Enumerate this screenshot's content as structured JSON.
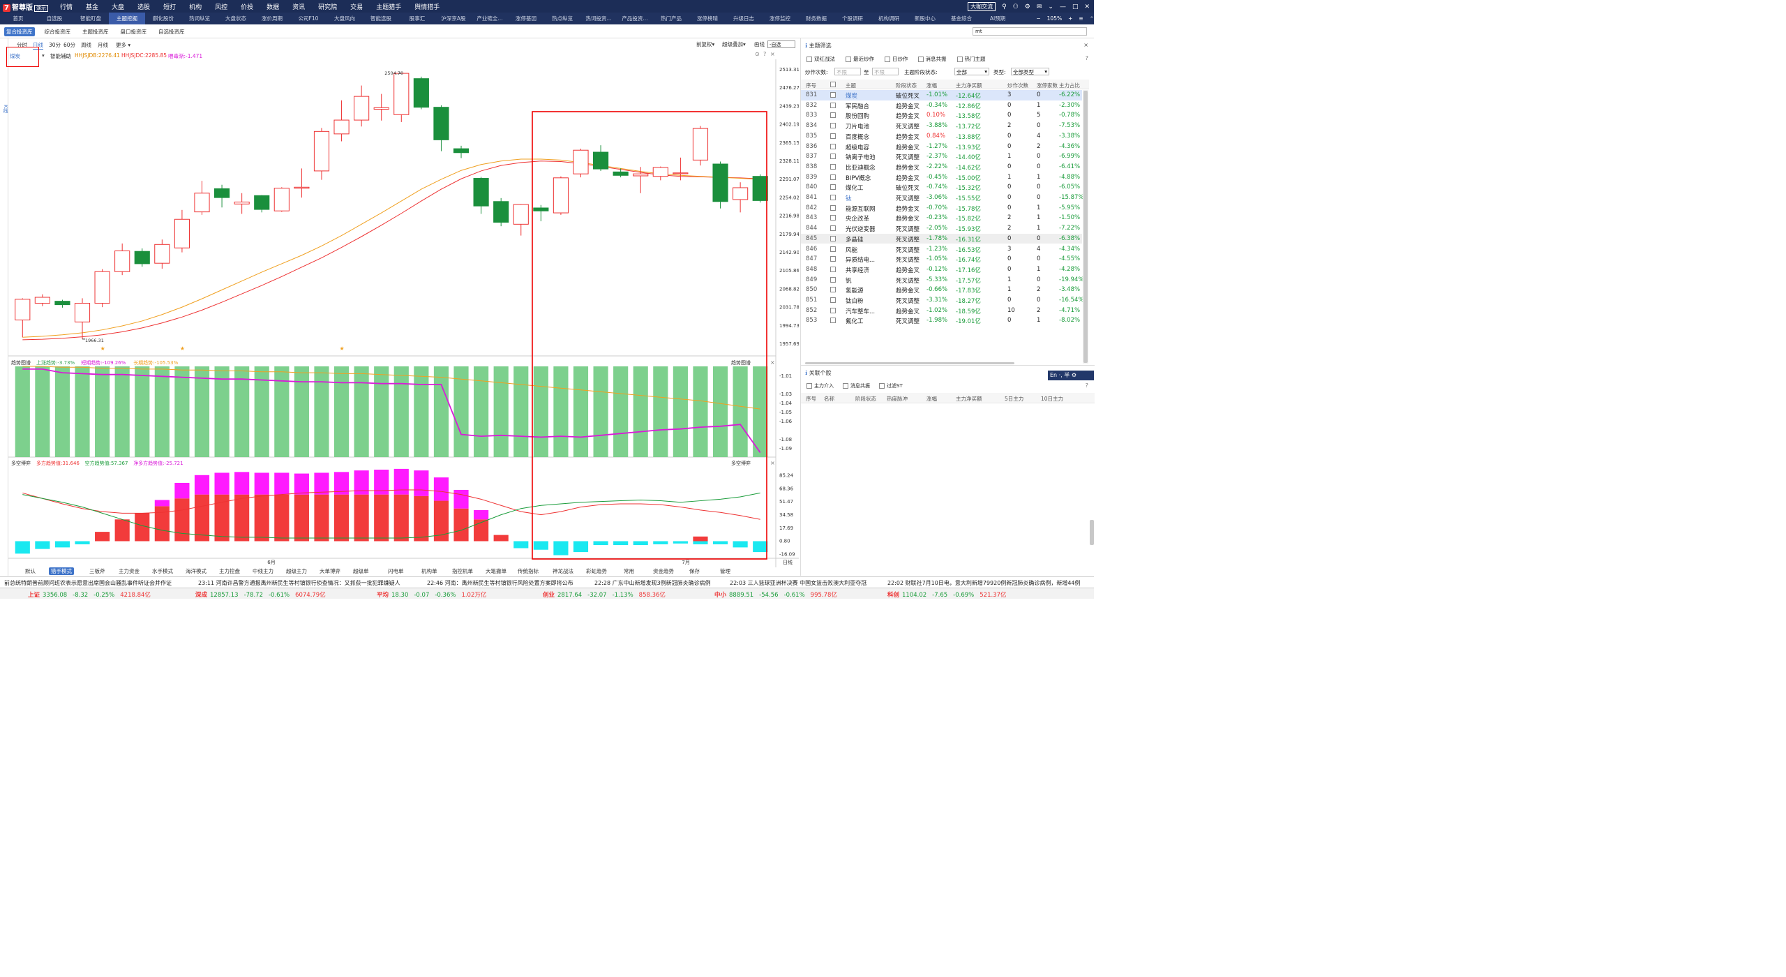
{
  "top": {
    "logo_badge": "7",
    "logo_text": "智尊版",
    "logo_demo": "演示",
    "menu": [
      "行情",
      "基金",
      "大盘",
      "选股",
      "短打",
      "机构",
      "风控",
      "价投",
      "数据",
      "资讯",
      "研究院",
      "交易",
      "主题猎手",
      "舆情猎手"
    ],
    "right": [
      "大咖交流",
      "⚲",
      "⚇",
      "⚙",
      "✉",
      "⌄",
      "—",
      "□",
      "✕"
    ]
  },
  "nav": {
    "tabs": [
      "首页",
      "自选股",
      "智能盯盘",
      "主题挖掘",
      "麒化股份",
      "热词纵览",
      "大盘状态",
      "涨价周期",
      "公司F10",
      "大盘风向",
      "智能选股",
      "股事汇",
      "沪深京A股",
      "产业链全...",
      "涨停基因",
      "热点纵览",
      "热词投资...",
      "产品投资...",
      "热门产品",
      "涨停榜晴",
      "升级日志",
      "涨停监控",
      "财务数据",
      "个股调研",
      "机构调研",
      "新股中心",
      "基金综合",
      "AI预期"
    ],
    "active_index": 3,
    "zoom": "105%",
    "controls": [
      "+",
      "≡",
      "⌃"
    ]
  },
  "subtabs": {
    "tabs": [
      "复合投资库",
      "综合投资库",
      "主题投资库",
      "盘口投资库",
      "自选投资库"
    ],
    "active_index": 0,
    "search_value": "mt"
  },
  "leftbar": {
    "label": "K线"
  },
  "chart_toolbar": {
    "periods": [
      "分时",
      "日线",
      "30分",
      "60分",
      "周线",
      "月线",
      "更多 ▾"
    ],
    "active_period": 1,
    "right_items": [
      "前复权▾",
      "超级叠加▾",
      "画线"
    ],
    "select_value": "-自选"
  },
  "chart_info": {
    "name": "煤炭",
    "assist": "智能辅助",
    "hhjsjdb": "HHJSJDB:2276.41",
    "hhjsjdc": "HHJSJDC:2285.85",
    "hint": "喂毒渐:-1.471"
  },
  "chart_data": [
    {
      "type": "candlestick",
      "title": "煤炭",
      "yticks": [
        2513.31,
        2476.27,
        2439.23,
        2402.19,
        2365.15,
        2328.11,
        2291.07,
        2254.02,
        2216.98,
        2179.94,
        2142.9,
        2105.86,
        2068.82,
        2031.78,
        1994.73,
        1957.69
      ],
      "ylim": [
        1957.69,
        2513.31
      ],
      "candles": [
        {
          "o": 2005,
          "c": 2047,
          "h": 2049,
          "l": 1970
        },
        {
          "o": 2039,
          "c": 2051,
          "h": 2057,
          "l": 2033
        },
        {
          "o": 2043,
          "c": 2036,
          "h": 2046,
          "l": 2030
        },
        {
          "o": 2001,
          "c": 2039,
          "h": 2049,
          "l": 1966.31
        },
        {
          "o": 2039,
          "c": 2103,
          "h": 2108,
          "l": 2031
        },
        {
          "o": 2103,
          "c": 2145,
          "h": 2160,
          "l": 2096
        },
        {
          "o": 2144,
          "c": 2119,
          "h": 2150,
          "l": 2113
        },
        {
          "o": 2120,
          "c": 2158,
          "h": 2168,
          "l": 2109
        },
        {
          "o": 2151,
          "c": 2209,
          "h": 2228,
          "l": 2142
        },
        {
          "o": 2224,
          "c": 2262,
          "h": 2287,
          "l": 2218
        },
        {
          "o": 2271,
          "c": 2253,
          "h": 2279,
          "l": 2233
        },
        {
          "o": 2240,
          "c": 2244,
          "h": 2262,
          "l": 2220
        },
        {
          "o": 2257,
          "c": 2229,
          "h": 2258,
          "l": 2223
        },
        {
          "o": 2226,
          "c": 2272,
          "h": 2274,
          "l": 2224
        },
        {
          "o": 2272,
          "c": 2274,
          "h": 2312,
          "l": 2253
        },
        {
          "o": 2307,
          "c": 2387,
          "h": 2394,
          "l": 2289
        },
        {
          "o": 2382,
          "c": 2410,
          "h": 2450,
          "l": 2367
        },
        {
          "o": 2410,
          "c": 2458,
          "h": 2480,
          "l": 2397
        },
        {
          "o": 2432,
          "c": 2435,
          "h": 2463,
          "l": 2409
        },
        {
          "o": 2421,
          "c": 2504.7,
          "h": 2504.7,
          "l": 2406
        },
        {
          "o": 2494,
          "c": 2436,
          "h": 2498,
          "l": 2432
        },
        {
          "o": 2436,
          "c": 2370,
          "h": 2440,
          "l": 2347
        },
        {
          "o": 2352,
          "c": 2344,
          "h": 2358,
          "l": 2333
        },
        {
          "o": 2292,
          "c": 2236,
          "h": 2295,
          "l": 2220
        },
        {
          "o": 2245,
          "c": 2203,
          "h": 2252,
          "l": 2195
        },
        {
          "o": 2199,
          "c": 2239,
          "h": 2240,
          "l": 2176
        },
        {
          "o": 2232,
          "c": 2226,
          "h": 2238,
          "l": 2205
        },
        {
          "o": 2222,
          "c": 2293,
          "h": 2296,
          "l": 2218
        },
        {
          "o": 2301,
          "c": 2349,
          "h": 2352,
          "l": 2294
        },
        {
          "o": 2345,
          "c": 2311,
          "h": 2359,
          "l": 2307
        },
        {
          "o": 2305,
          "c": 2298,
          "h": 2312,
          "l": 2294
        },
        {
          "o": 2297,
          "c": 2301,
          "h": 2315,
          "l": 2262
        },
        {
          "o": 2296,
          "c": 2314,
          "h": 2316,
          "l": 2288
        },
        {
          "o": 2303,
          "c": 2303,
          "h": 2334,
          "l": 2288
        },
        {
          "o": 2329,
          "c": 2393,
          "h": 2398,
          "l": 2318
        },
        {
          "o": 2321,
          "c": 2245,
          "h": 2326,
          "l": 2231
        },
        {
          "o": 2249,
          "c": 2273,
          "h": 2284,
          "l": 2223
        },
        {
          "o": 2296,
          "c": 2247,
          "h": 2300,
          "l": 2243
        }
      ],
      "labels": {
        "high": "2504.70",
        "low": "1966.31"
      },
      "ma_orange": [
        1970,
        1972,
        1975,
        1979,
        1985,
        1993,
        2003,
        2016,
        2031,
        2048,
        2066,
        2084,
        2102,
        2119,
        2136,
        2155,
        2176,
        2199,
        2222,
        2246,
        2270,
        2290,
        2308,
        2320,
        2327,
        2331,
        2331,
        2329,
        2324,
        2318,
        2312,
        2306,
        2301,
        2298,
        2296,
        2294,
        2292,
        2290
      ],
      "ma_red": [
        1965,
        1966,
        1968,
        1971,
        1975,
        1981,
        1989,
        1999,
        2011,
        2025,
        2041,
        2058,
        2075,
        2093,
        2112,
        2131,
        2152,
        2174,
        2197,
        2221,
        2246,
        2270,
        2291,
        2307,
        2318,
        2324,
        2327,
        2326,
        2322,
        2316,
        2310,
        2304,
        2299,
        2296,
        2295,
        2294,
        2293,
        2291
      ]
    },
    {
      "type": "bar",
      "title": "趋势图谱",
      "legend": [
        {
          "name": "上涨趋势:-3.73%",
          "color": "#2e9e4f"
        },
        {
          "name": "短期趋势:-109.26%",
          "color": "#d91ad9"
        },
        {
          "name": "长期趋势:-105.53%",
          "color": "#f0a020"
        }
      ],
      "yticks": [
        -1.01,
        -1.03,
        -1.04,
        -1.05,
        -1.06,
        -1.08,
        -1.09
      ],
      "ylim": [
        -1.1,
        -1.0
      ],
      "bar_count": 38,
      "short": [
        -1.003,
        -1.003,
        -1.007,
        -1.008,
        -1.009,
        -1.009,
        -1.01,
        -1.011,
        -1.012,
        -1.013,
        -1.014,
        -1.014,
        -1.015,
        -1.016,
        -1.017,
        -1.017,
        -1.018,
        -1.018,
        -1.019,
        -1.019,
        -1.02,
        -1.02,
        -1.075,
        -1.077,
        -1.076,
        -1.077,
        -1.078,
        -1.077,
        -1.078,
        -1.076,
        -1.074,
        -1.072,
        -1.07,
        -1.069,
        -1.067,
        -1.066,
        -1.064,
        -1.095
      ],
      "long": [
        -1.0,
        -1.0,
        -1.001,
        -1.001,
        -1.002,
        -1.002,
        -1.003,
        -1.003,
        -1.004,
        -1.004,
        -1.005,
        -1.005,
        -1.006,
        -1.006,
        -1.007,
        -1.007,
        -1.008,
        -1.008,
        -1.009,
        -1.01,
        -1.011,
        -1.012,
        -1.014,
        -1.016,
        -1.018,
        -1.02,
        -1.022,
        -1.024,
        -1.026,
        -1.028,
        -1.03,
        -1.032,
        -1.034,
        -1.036,
        -1.038,
        -1.041,
        -1.044,
        -1.047
      ]
    },
    {
      "type": "bar",
      "title": "多空博弈",
      "legend": [
        {
          "name": "多方趋势值:31.646",
          "color": "#e33"
        },
        {
          "name": "空方趋势值:57.367",
          "color": "#1a9c3a"
        },
        {
          "name": "净多方趋势值:-25.721",
          "color": "#d91ad9"
        }
      ],
      "yticks": [
        85.24,
        68.36,
        51.47,
        34.58,
        17.69,
        0.8,
        -16.09
      ],
      "ylim": [
        -22,
        92
      ],
      "red": [
        0,
        0,
        0,
        0,
        12,
        28,
        36,
        45,
        55,
        60,
        60,
        60,
        60,
        60,
        60,
        60,
        60,
        60,
        60,
        60,
        58,
        52,
        42,
        28,
        8,
        0,
        0,
        0,
        0,
        0,
        0,
        0,
        0,
        0,
        6,
        0,
        0,
        0
      ],
      "magenta": [
        0,
        0,
        0,
        0,
        0,
        0,
        0,
        8,
        20,
        25,
        28,
        29,
        28,
        28,
        27,
        28,
        29,
        31,
        32,
        33,
        33,
        30,
        24,
        12,
        0,
        0,
        0,
        0,
        0,
        0,
        0,
        0,
        0,
        0,
        0,
        0,
        0,
        0
      ],
      "cyan": [
        -16,
        -10,
        -8,
        -4,
        0,
        0,
        0,
        0,
        0,
        0,
        0,
        0,
        0,
        0,
        0,
        0,
        0,
        0,
        0,
        0,
        0,
        0,
        0,
        0,
        0,
        -9,
        -11,
        -18,
        -14,
        -5,
        -5,
        -5,
        -4,
        -3,
        -4,
        -4,
        -8,
        -14
      ],
      "line_red": [
        62,
        55,
        48,
        42,
        38,
        36,
        36,
        37,
        40,
        45,
        50,
        55,
        58,
        60,
        62,
        63,
        64,
        65,
        65,
        66,
        66,
        64,
        60,
        54,
        46,
        38,
        34,
        38,
        44,
        47,
        48,
        48,
        47,
        44,
        40,
        37,
        33,
        28
      ],
      "line_green": [
        60,
        55,
        50,
        44,
        36,
        28,
        20,
        14,
        10,
        8,
        6,
        5,
        5,
        4,
        4,
        4,
        4,
        4,
        4,
        4,
        5,
        8,
        14,
        24,
        34,
        42,
        46,
        48,
        50,
        51,
        52,
        53,
        52,
        50,
        52,
        54,
        57,
        62
      ]
    }
  ],
  "xaxis": {
    "labels": [
      "6月",
      "7月"
    ]
  },
  "pane_labels": {
    "trend": "趋势图谱",
    "duokong": "多空博弈",
    "bottom_right": "日线"
  },
  "bottom_tabs": {
    "items": [
      "默认",
      "猎手模式",
      "三板斧",
      "主力资金",
      "水手模式",
      "海洋模式",
      "主力控盘",
      "中线主力",
      "超级主力",
      "大单博弈",
      "超级单",
      "闪电单",
      "机构单",
      "指控机单",
      "大笔撤单",
      "传统指标",
      "神龙战法",
      "彩虹趋势",
      "常用",
      "资金趋势",
      "保存",
      "管理"
    ],
    "active_index": 1
  },
  "right_panel": {
    "title": "主题筛选",
    "filters": [
      "双红战法",
      "最近炒作",
      "日炒作",
      "消息共振",
      "热门主题"
    ],
    "count_label": "炒作次数:",
    "placeholder": "不限",
    "to": "至",
    "stage_label": "主题阶段状态:",
    "stage_value": "全部",
    "type_label": "类型:",
    "type_value": "全部类型",
    "columns": [
      "序号",
      "",
      "主题",
      "阶段状态",
      "涨幅",
      "主力净买额",
      "炒作次数",
      "涨停家数",
      "主力占比"
    ],
    "rows": [
      [
        "831",
        "煤炭",
        "破位死叉",
        "-1.01%",
        "-12.64亿",
        "3",
        "0",
        "-6.22%"
      ],
      [
        "832",
        "军民融合",
        "趋势金叉",
        "-0.34%",
        "-12.86亿",
        "0",
        "1",
        "-2.30%"
      ],
      [
        "833",
        "股份回购",
        "趋势金叉",
        "0.10%",
        "-13.58亿",
        "0",
        "5",
        "-0.78%"
      ],
      [
        "834",
        "刀片电池",
        "死叉调整",
        "-3.88%",
        "-13.72亿",
        "2",
        "0",
        "-7.53%"
      ],
      [
        "835",
        "百度概念",
        "趋势金叉",
        "0.84%",
        "-13.88亿",
        "0",
        "4",
        "-3.38%"
      ],
      [
        "836",
        "超级电容",
        "趋势金叉",
        "-1.27%",
        "-13.93亿",
        "0",
        "2",
        "-4.36%"
      ],
      [
        "837",
        "钠离子电池",
        "死叉调整",
        "-2.37%",
        "-14.40亿",
        "1",
        "0",
        "-6.99%"
      ],
      [
        "838",
        "比亚迪概念",
        "趋势金叉",
        "-2.22%",
        "-14.62亿",
        "0",
        "0",
        "-6.41%"
      ],
      [
        "839",
        "BIPV概念",
        "趋势金叉",
        "-0.45%",
        "-15.00亿",
        "1",
        "1",
        "-4.88%"
      ],
      [
        "840",
        "煤化工",
        "破位死叉",
        "-0.74%",
        "-15.32亿",
        "0",
        "0",
        "-6.05%"
      ],
      [
        "841",
        "钛",
        "死叉调整",
        "-3.06%",
        "-15.55亿",
        "0",
        "0",
        "-15.87%"
      ],
      [
        "842",
        "能源互联网",
        "趋势金叉",
        "-0.70%",
        "-15.78亿",
        "0",
        "1",
        "-5.95%"
      ],
      [
        "843",
        "央企改革",
        "趋势金叉",
        "-0.23%",
        "-15.82亿",
        "2",
        "1",
        "-1.50%"
      ],
      [
        "844",
        "光伏逆变器",
        "死叉调整",
        "-2.05%",
        "-15.93亿",
        "2",
        "1",
        "-7.22%"
      ],
      [
        "845",
        "多晶硅",
        "死叉调整",
        "-1.78%",
        "-16.31亿",
        "0",
        "0",
        "-6.38%"
      ],
      [
        "846",
        "风能",
        "死叉调整",
        "-1.23%",
        "-16.53亿",
        "3",
        "4",
        "-4.34%"
      ],
      [
        "847",
        "异质结电...",
        "死叉调整",
        "-1.05%",
        "-16.74亿",
        "0",
        "0",
        "-4.55%"
      ],
      [
        "848",
        "共享经济",
        "趋势金叉",
        "-0.12%",
        "-17.16亿",
        "0",
        "1",
        "-4.28%"
      ],
      [
        "849",
        "钒",
        "死叉调整",
        "-5.33%",
        "-17.57亿",
        "1",
        "0",
        "-19.94%"
      ],
      [
        "850",
        "氢能源",
        "趋势金叉",
        "-0.66%",
        "-17.83亿",
        "1",
        "2",
        "-3.48%"
      ],
      [
        "851",
        "钛白粉",
        "死叉调整",
        "-3.31%",
        "-18.27亿",
        "0",
        "0",
        "-16.54%"
      ],
      [
        "852",
        "汽车整车...",
        "趋势金叉",
        "-1.02%",
        "-18.59亿",
        "10",
        "2",
        "-4.71%"
      ],
      [
        "853",
        "氟化工",
        "死叉调整",
        "-1.98%",
        "-19.01亿",
        "0",
        "1",
        "-8.02%"
      ]
    ],
    "selected_row": 0,
    "highlight_row": 14,
    "related_title": "关联个股",
    "related_filters": [
      "主力介入",
      "消息共振",
      "过滤ST"
    ],
    "related_columns": [
      "序号",
      "名称",
      "阶段状态",
      "热度脉冲",
      "涨幅",
      "主力净买额",
      "5日主力",
      "10日主力"
    ],
    "ime": "En ·, 半 ⚙"
  },
  "ticker": [
    "前总统特朗普前顾问班农表示愿意出席国会山骚乱事件听证会并作证",
    "23:11 河南许昌警方通报禹州新民生等村镇银行侦查情况：又抓获一批犯罪嫌疑人",
    "22:46 河南：禹州新民生等村镇银行风险处置方案即将公布",
    "22:28 广东中山新增发现3例新冠肺炎确诊病例",
    "22:03 三人篮球亚洲杯决赛 中国女篮击败澳大利亚夺冠",
    "22:02 财联社7月10日电，意大利新增79920例新冠肺炎确诊病例，新增44例"
  ],
  "indices": [
    {
      "name": "上证",
      "price": "3356.08",
      "chg": "-8.32",
      "pct": "-0.25%",
      "amt": "4218.84亿"
    },
    {
      "name": "深成",
      "price": "12857.13",
      "chg": "-78.72",
      "pct": "-0.61%",
      "amt": "6074.79亿"
    },
    {
      "name": "平均",
      "price": "18.30",
      "chg": "-0.07",
      "pct": "-0.36%",
      "amt": "1.02万亿"
    },
    {
      "name": "创业",
      "price": "2817.64",
      "chg": "-32.07",
      "pct": "-1.13%",
      "amt": "858.36亿"
    },
    {
      "name": "中小",
      "price": "8889.51",
      "chg": "-54.56",
      "pct": "-0.61%",
      "amt": "995.78亿"
    },
    {
      "name": "科创",
      "price": "1104.02",
      "chg": "-7.65",
      "pct": "-0.69%",
      "amt": "521.37亿"
    }
  ],
  "colors": {
    "up": "#e33",
    "down": "#1a8f3c",
    "accent": "#3f74c9",
    "nav_bg": "#1c2d57"
  }
}
